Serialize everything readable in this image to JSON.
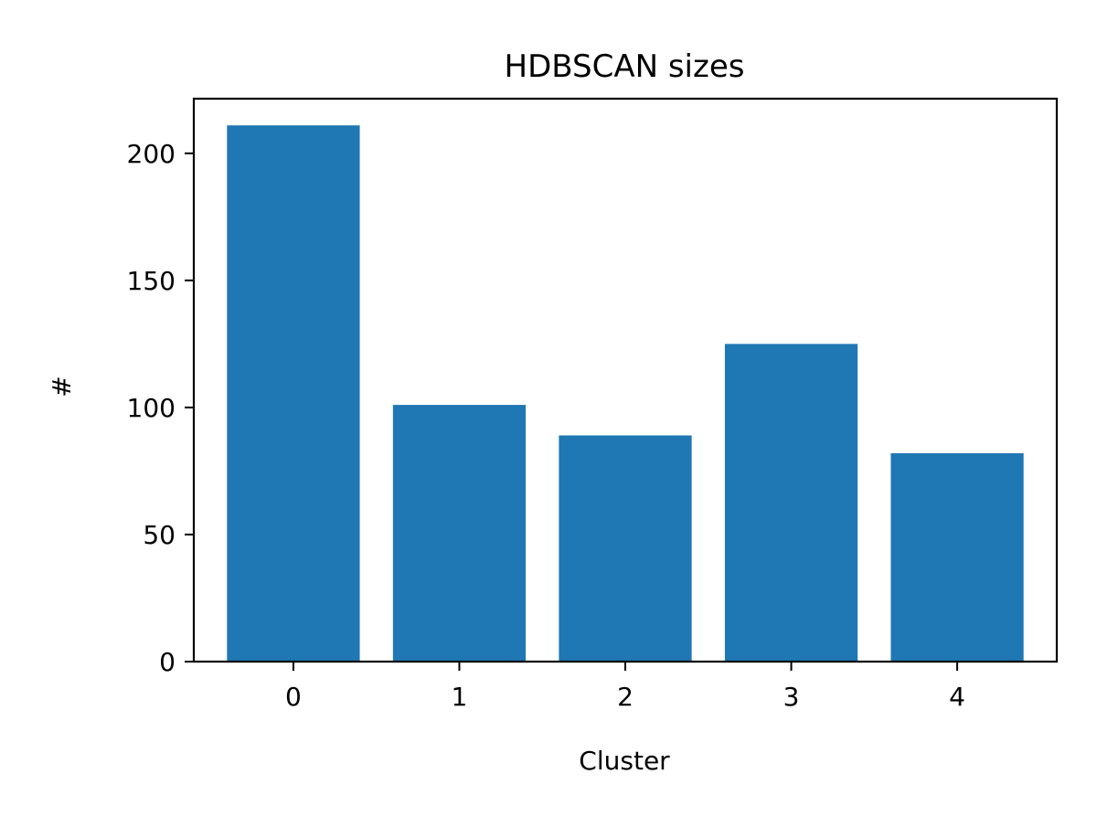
{
  "chart_data": {
    "type": "bar",
    "title": "HDBSCAN sizes",
    "xlabel": "Cluster",
    "ylabel": "#",
    "categories": [
      "0",
      "1",
      "2",
      "3",
      "4"
    ],
    "values": [
      211,
      101,
      89,
      125,
      82
    ],
    "ylim": [
      0,
      221.5
    ],
    "yticks": [
      0,
      50,
      100,
      150,
      200
    ],
    "grid": false,
    "bar_color": "#1f77b4"
  }
}
